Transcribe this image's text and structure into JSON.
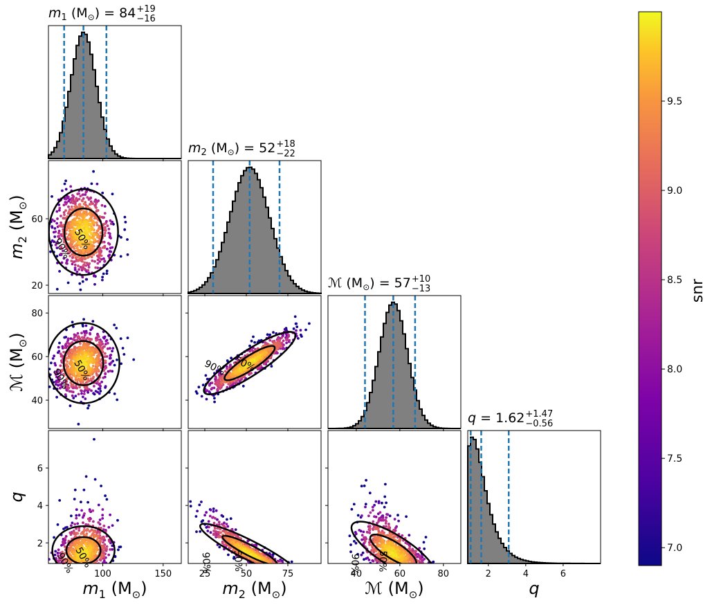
{
  "chart_data": {
    "type": "scatter",
    "parameters": [
      {
        "key": "m1",
        "label": "m",
        "sub": "1",
        "unit": "(M",
        "unitsub": "⊙",
        "unitclose": ")",
        "title_prefix": "= ",
        "median": "84",
        "plus": "+19",
        "minus": "−16",
        "range": [
          55,
          165
        ],
        "ticks": [
          100,
          150
        ],
        "tick_labels": [
          "100",
          "150"
        ],
        "quantiles": [
          68,
          84,
          103
        ],
        "dist": {
          "type": "normal",
          "mu": 84,
          "sigma": 10.5
        }
      },
      {
        "key": "m2",
        "label": "m",
        "sub": "2",
        "unit": "(M",
        "unitsub": "⊙",
        "unitclose": ")",
        "title_prefix": "= ",
        "median": "52",
        "plus": "+18",
        "minus": "−22",
        "range": [
          15,
          95
        ],
        "ticks": [
          25,
          50,
          75
        ],
        "tick_labels": [
          "25",
          "50",
          "75"
        ],
        "quantiles": [
          30,
          52,
          70
        ],
        "dist": {
          "type": "normal",
          "mu": 52,
          "sigma": 12
        }
      },
      {
        "key": "mc",
        "label": "ℳ",
        "sub": "",
        "unit": "(M",
        "unitsub": "⊙",
        "unitclose": ")",
        "title_prefix": "= ",
        "median": "57",
        "plus": "+10",
        "minus": "−13",
        "range": [
          27,
          88
        ],
        "ticks": [
          40,
          60,
          80
        ],
        "tick_labels": [
          "40",
          "60",
          "80"
        ],
        "quantiles": [
          44,
          57,
          67
        ],
        "dist": {
          "type": "normal",
          "mu": 57,
          "sigma": 6.5
        }
      },
      {
        "key": "q",
        "label": "q",
        "sub": "",
        "unit": "",
        "unitsub": "",
        "unitclose": "",
        "title_prefix": "= ",
        "median": "1.62",
        "plus": "+1.47",
        "minus": "−0.56",
        "range": [
          0.9,
          8.0
        ],
        "ticks": [
          2,
          4,
          6
        ],
        "tick_labels": [
          "2",
          "4",
          "6"
        ],
        "quantiles": [
          1.06,
          1.62,
          3.09
        ],
        "dist": {
          "type": "lognormal",
          "mu": 0.35,
          "sigma": 0.45
        }
      }
    ],
    "ytick_labels": {
      "m2": {
        "values": [
          20,
          60
        ],
        "labels": [
          "20",
          "60"
        ]
      },
      "mc": {
        "values": [
          40,
          60,
          80
        ],
        "labels": [
          "40",
          "60",
          "80"
        ]
      },
      "q": {
        "values": [
          2,
          4,
          6
        ],
        "labels": [
          "2",
          "4",
          "6"
        ]
      }
    },
    "contour_labels": [
      "50%",
      "90%"
    ],
    "colorbar": {
      "label": "snr",
      "range": [
        6.9,
        10.0
      ],
      "ticks": [
        7.0,
        7.5,
        8.0,
        8.5,
        9.0,
        9.5
      ],
      "tick_labels": [
        "7.0",
        "7.5",
        "8.0",
        "8.5",
        "9.0",
        "9.5"
      ],
      "colormap": "plasma"
    },
    "colors": {
      "histogram_fill": "#808080",
      "histogram_edge": "#000000",
      "quantile_line": "#1f77b4",
      "contour": "#000000"
    }
  }
}
